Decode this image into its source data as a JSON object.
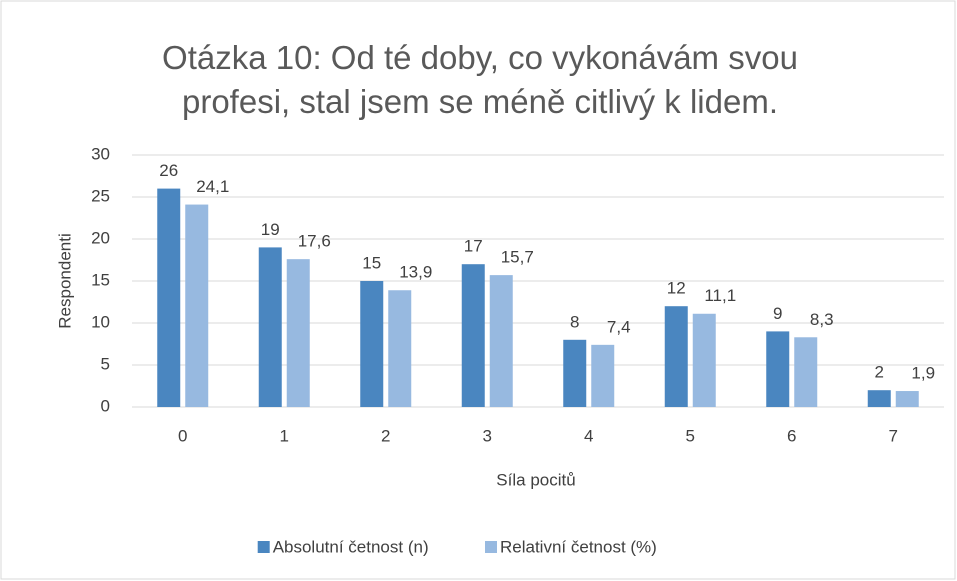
{
  "chart_data": {
    "type": "bar",
    "title": "Otázka 10: Od té doby, co vykonávám svou profesi, stal jsem se méně citlivý k lidem.",
    "x_label": "Síla pocitů",
    "y_label": "Respondenti",
    "categories": [
      "0",
      "1",
      "2",
      "3",
      "4",
      "5",
      "6",
      "7"
    ],
    "series": [
      {
        "name": "Absolutní četnost (n)",
        "color": "#4a86c0",
        "values": [
          26,
          19,
          15,
          17,
          8,
          12,
          9,
          2
        ]
      },
      {
        "name": "Relativní četnost (%)",
        "color": "#97b9e0",
        "values": [
          24.1,
          17.6,
          13.9,
          15.7,
          7.4,
          11.1,
          8.3,
          1.9
        ],
        "value_labels": [
          "24,1",
          "17,6",
          "13,9",
          "15,7",
          "7,4",
          "11,1",
          "8,3",
          "1,9"
        ]
      }
    ],
    "ylim": [
      0,
      30
    ],
    "yticks": [
      0,
      5,
      10,
      15,
      20,
      25,
      30
    ],
    "grid": true,
    "legend": "bottom"
  }
}
